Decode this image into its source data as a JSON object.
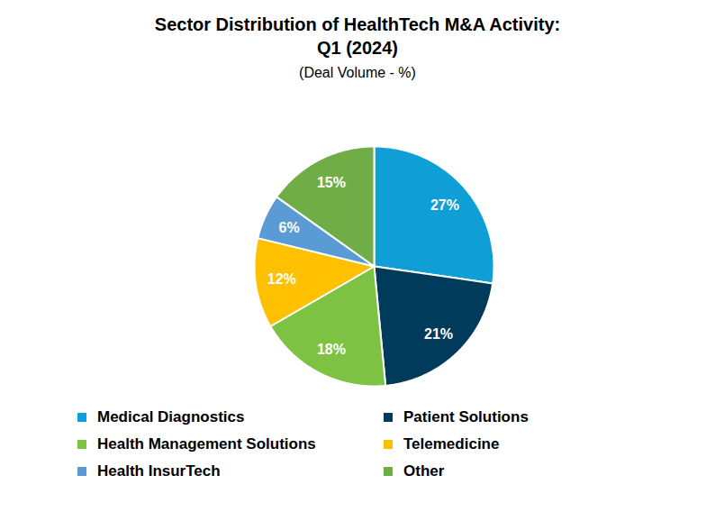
{
  "chart_data": {
    "type": "pie",
    "title": "Sector Distribution of HealthTech M&A Activity:\nQ1 (2024)",
    "subtitle": "(Deal Volume - %)",
    "categories": [
      "Medical Diagnostics",
      "Patient Solutions",
      "Health Management Solutions",
      "Telemedicine",
      "Health InsurTech",
      "Other"
    ],
    "values": [
      27,
      21,
      18,
      12,
      6,
      15
    ],
    "value_labels": [
      "27%",
      "21%",
      "18%",
      "12%",
      "6%",
      "15%"
    ],
    "colors": [
      "#0F9ED5",
      "#003B5C",
      "#7DC242",
      "#FFC000",
      "#5B9BD5",
      "#70AD47"
    ],
    "data_labels": true,
    "legend": "bottom"
  }
}
